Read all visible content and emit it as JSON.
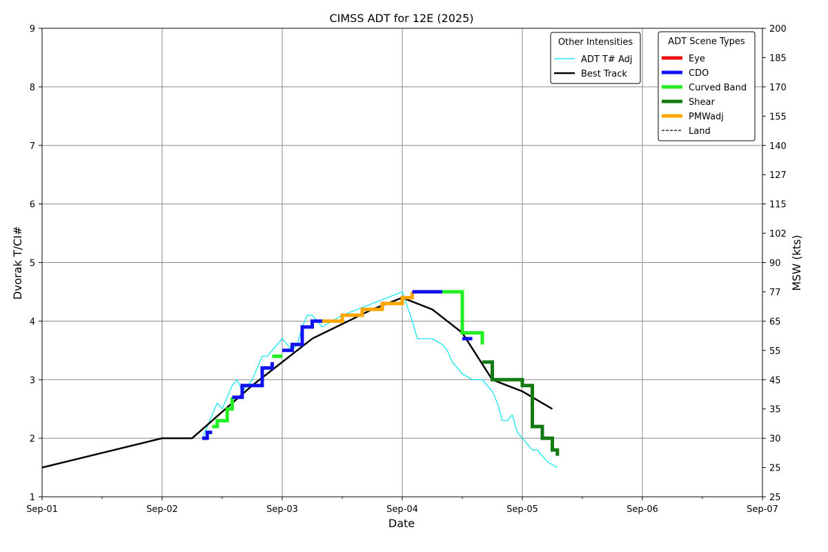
{
  "chart_data": {
    "type": "line",
    "title": "CIMSS ADT for 12E (2025)",
    "xlabel": "Date",
    "ylabel": "Dvorak T/CI#",
    "y2label": "MSW (kts)",
    "xlim": [
      "2025-09-01 00:00",
      "2025-09-07 00:00"
    ],
    "ylim": [
      1,
      9
    ],
    "xticks": [
      {
        "day": "2025-09-01",
        "label": "Sep-01"
      },
      {
        "day": "2025-09-02",
        "label": "Sep-02"
      },
      {
        "day": "2025-09-03",
        "label": "Sep-03"
      },
      {
        "day": "2025-09-04",
        "label": "Sep-04"
      },
      {
        "day": "2025-09-05",
        "label": "Sep-05"
      },
      {
        "day": "2025-09-06",
        "label": "Sep-06"
      },
      {
        "day": "2025-09-07",
        "label": "Sep-07"
      }
    ],
    "yticks": [
      "1",
      "2",
      "3",
      "4",
      "5",
      "6",
      "7",
      "8",
      "9"
    ],
    "y2ticks": [
      {
        "t": 1.0,
        "label": "25"
      },
      {
        "t": 1.5,
        "label": "25"
      },
      {
        "t": 2.0,
        "label": "30"
      },
      {
        "t": 2.5,
        "label": "35"
      },
      {
        "t": 3.0,
        "label": "45"
      },
      {
        "t": 3.5,
        "label": "55"
      },
      {
        "t": 4.0,
        "label": "65"
      },
      {
        "t": 4.5,
        "label": "77"
      },
      {
        "t": 5.0,
        "label": "90"
      },
      {
        "t": 5.5,
        "label": "102"
      },
      {
        "t": 6.0,
        "label": "115"
      },
      {
        "t": 6.5,
        "label": "127"
      },
      {
        "t": 7.0,
        "label": "140"
      },
      {
        "t": 7.5,
        "label": "155"
      },
      {
        "t": 8.0,
        "label": "170"
      },
      {
        "t": 8.5,
        "label": "185"
      },
      {
        "t": 9.0,
        "label": "200"
      }
    ],
    "grid": true,
    "legends": [
      {
        "title": "Other Intensities",
        "placement": "top-right",
        "entries": [
          {
            "label": "ADT T# Adj",
            "color": "#00e5ee",
            "style": "thin"
          },
          {
            "label": "Best Track",
            "color": "#000000",
            "style": "medium"
          }
        ]
      },
      {
        "title": "ADT Scene Types",
        "placement": "top-right",
        "entries": [
          {
            "label": "Eye",
            "color": "#ee1111",
            "style": "thick"
          },
          {
            "label": "CDO",
            "color": "#1111ee",
            "style": "thick"
          },
          {
            "label": "Curved Band",
            "color": "#22ee22",
            "style": "thick"
          },
          {
            "label": "Shear",
            "color": "#117a11",
            "style": "thick"
          },
          {
            "label": "PMWadj",
            "color": "#ffa500",
            "style": "thick"
          },
          {
            "label": "Land",
            "color": "#000000",
            "style": "dashed"
          }
        ]
      }
    ],
    "series": [
      {
        "name": "Best Track",
        "color": "#000000",
        "x": [
          "2025-09-01 00:00",
          "2025-09-02 00:00",
          "2025-09-02 06:00",
          "2025-09-02 18:00",
          "2025-09-03 06:00",
          "2025-09-03 18:00",
          "2025-09-04 00:00",
          "2025-09-04 06:00",
          "2025-09-04 12:00",
          "2025-09-04 18:00",
          "2025-09-05 00:00",
          "2025-09-05 06:00"
        ],
        "y": [
          1.5,
          2.0,
          2.0,
          2.9,
          3.7,
          4.2,
          4.4,
          4.2,
          3.8,
          3.0,
          2.8,
          2.5
        ]
      },
      {
        "name": "ADT T# Adj",
        "color": "#00e5ee",
        "x": [
          "2025-09-02 08:00",
          "2025-09-02 09:00",
          "2025-09-02 10:00",
          "2025-09-02 11:00",
          "2025-09-02 12:00",
          "2025-09-02 13:00",
          "2025-09-02 14:00",
          "2025-09-02 15:00",
          "2025-09-02 16:00",
          "2025-09-02 17:00",
          "2025-09-02 18:00",
          "2025-09-02 19:00",
          "2025-09-02 20:00",
          "2025-09-02 21:00",
          "2025-09-02 22:00",
          "2025-09-02 23:00",
          "2025-09-03 00:00",
          "2025-09-03 01:00",
          "2025-09-03 02:00",
          "2025-09-03 03:00",
          "2025-09-03 04:00",
          "2025-09-03 05:00",
          "2025-09-03 06:00",
          "2025-09-03 07:00",
          "2025-09-03 08:00",
          "2025-09-03 10:00",
          "2025-09-03 12:00",
          "2025-09-04 00:00",
          "2025-09-04 02:00",
          "2025-09-04 03:00",
          "2025-09-04 04:00",
          "2025-09-04 06:00",
          "2025-09-04 08:00",
          "2025-09-04 09:00",
          "2025-09-04 10:00",
          "2025-09-04 11:00",
          "2025-09-04 12:00",
          "2025-09-04 14:00",
          "2025-09-04 16:00",
          "2025-09-04 17:00",
          "2025-09-04 18:00",
          "2025-09-04 19:00",
          "2025-09-04 20:00",
          "2025-09-04 21:00",
          "2025-09-04 22:00",
          "2025-09-04 23:00",
          "2025-09-05 00:00",
          "2025-09-05 01:00",
          "2025-09-05 02:00",
          "2025-09-05 03:00",
          "2025-09-05 05:00",
          "2025-09-05 07:00"
        ],
        "y": [
          2.0,
          2.2,
          2.4,
          2.6,
          2.5,
          2.7,
          2.9,
          3.0,
          2.8,
          2.9,
          3.0,
          3.2,
          3.4,
          3.4,
          3.5,
          3.6,
          3.7,
          3.6,
          3.5,
          3.6,
          3.9,
          4.1,
          4.1,
          4.0,
          3.9,
          4.0,
          4.1,
          4.5,
          4.0,
          3.7,
          3.7,
          3.7,
          3.6,
          3.5,
          3.3,
          3.2,
          3.1,
          3.0,
          3.0,
          2.9,
          2.8,
          2.6,
          2.3,
          2.3,
          2.4,
          2.1,
          2.0,
          1.9,
          1.8,
          1.8,
          1.6,
          1.5
        ]
      }
    ],
    "scene_segments": [
      {
        "scene": "CDO",
        "x": [
          "2025-09-02 08:00",
          "2025-09-02 09:00",
          "2025-09-02 10:00"
        ],
        "y": [
          2.0,
          2.1,
          2.1
        ]
      },
      {
        "scene": "Curved Band",
        "x": [
          "2025-09-02 10:00",
          "2025-09-02 11:00",
          "2025-09-02 12:00",
          "2025-09-02 13:00",
          "2025-09-02 14:00"
        ],
        "y": [
          2.2,
          2.3,
          2.3,
          2.5,
          2.7
        ]
      },
      {
        "scene": "CDO",
        "x": [
          "2025-09-02 14:00",
          "2025-09-02 16:00",
          "2025-09-02 18:00",
          "2025-09-02 20:00",
          "2025-09-02 22:00"
        ],
        "y": [
          2.7,
          2.9,
          2.9,
          3.2,
          3.3
        ]
      },
      {
        "scene": "Curved Band",
        "x": [
          "2025-09-02 22:00",
          "2025-09-03 00:00"
        ],
        "y": [
          3.4,
          3.4
        ]
      },
      {
        "scene": "CDO",
        "x": [
          "2025-09-03 00:00",
          "2025-09-03 02:00",
          "2025-09-03 04:00",
          "2025-09-03 06:00",
          "2025-09-03 08:00"
        ],
        "y": [
          3.5,
          3.6,
          3.9,
          4.0,
          4.0
        ]
      },
      {
        "scene": "PMWadj",
        "x": [
          "2025-09-03 08:00",
          "2025-09-03 12:00",
          "2025-09-03 16:00",
          "2025-09-03 20:00",
          "2025-09-04 00:00",
          "2025-09-04 02:00"
        ],
        "y": [
          4.0,
          4.1,
          4.2,
          4.3,
          4.4,
          4.5
        ]
      },
      {
        "scene": "CDO",
        "x": [
          "2025-09-04 02:00",
          "2025-09-04 08:00"
        ],
        "y": [
          4.5,
          4.5
        ]
      },
      {
        "scene": "Curved Band",
        "x": [
          "2025-09-04 08:00",
          "2025-09-04 12:00",
          "2025-09-04 16:00"
        ],
        "y": [
          4.5,
          3.8,
          3.6
        ]
      },
      {
        "scene": "CDO",
        "x": [
          "2025-09-04 12:00",
          "2025-09-04 14:00"
        ],
        "y": [
          3.7,
          3.7
        ]
      },
      {
        "scene": "Shear",
        "x": [
          "2025-09-04 16:00",
          "2025-09-04 18:00",
          "2025-09-04 20:00",
          "2025-09-05 00:00",
          "2025-09-05 02:00",
          "2025-09-05 04:00",
          "2025-09-05 06:00",
          "2025-09-05 07:00"
        ],
        "y": [
          3.3,
          3.0,
          3.0,
          2.9,
          2.2,
          2.0,
          1.8,
          1.7
        ]
      }
    ]
  }
}
